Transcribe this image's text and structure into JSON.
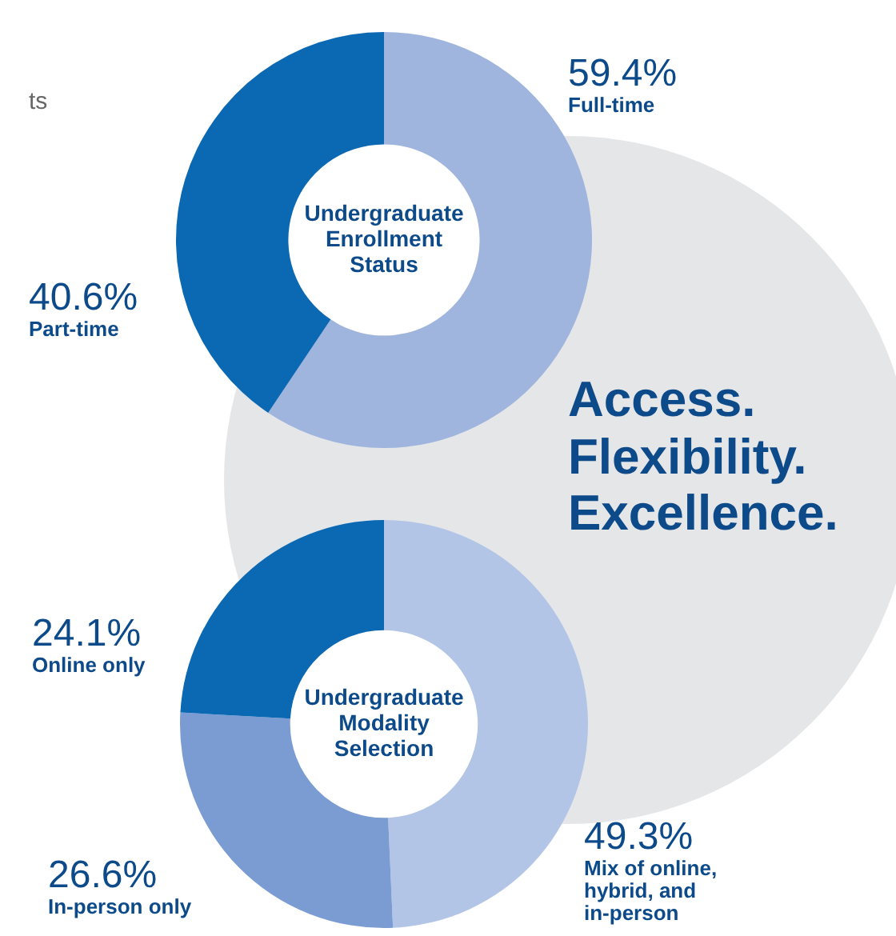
{
  "chart_data": [
    {
      "type": "donut",
      "title": "Undergraduate Enrollment Status",
      "categories": [
        "Full-time",
        "Part-time"
      ],
      "values": [
        59.4,
        40.6
      ],
      "colors": [
        "#9fb5de",
        "#0b68b3"
      ],
      "value_labels": [
        "59.4%",
        "40.6%"
      ],
      "annotations": [
        "ts",
        "Access. Flexibility. Excellence."
      ]
    },
    {
      "type": "donut",
      "title": "Undergraduate Modality Selection",
      "categories": [
        "Mix of online, hybrid, and in-person",
        "In-person only",
        "Online only"
      ],
      "values": [
        49.3,
        26.6,
        24.1
      ],
      "colors": [
        "#b3c5e7",
        "#7a9cd2",
        "#0b68b3"
      ],
      "value_labels": [
        "49.3%",
        "26.6%",
        "24.1%"
      ]
    }
  ]
}
